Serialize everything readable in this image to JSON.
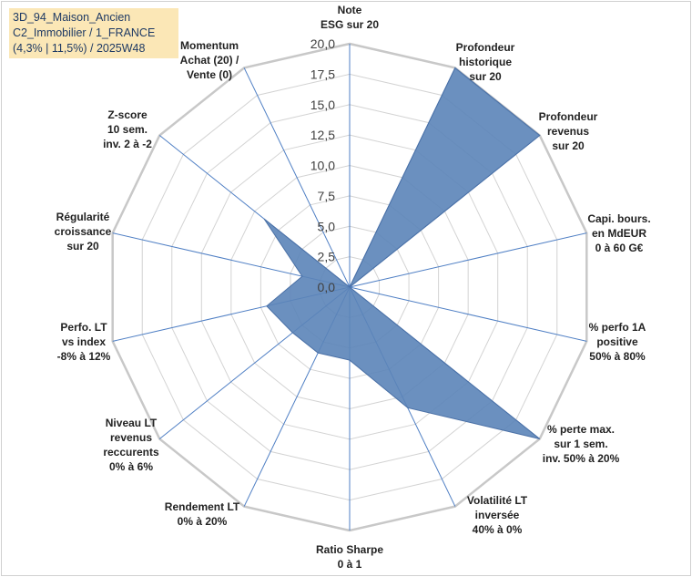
{
  "title_box": {
    "line1": "3D_94_Maison_Ancien",
    "line2": "C2_Immobilier / 1_FRANCE",
    "line3": "(4,3% | 11,5%) / 2025W48"
  },
  "chart_data": {
    "type": "radar",
    "r_min": 0,
    "r_max": 20,
    "r_step": 2.5,
    "tick_labels": [
      "0,0",
      "2,5",
      "5,0",
      "7,5",
      "10,0",
      "12,5",
      "15,0",
      "17,5",
      "20,0"
    ],
    "axes": [
      "Note\nESG sur 20",
      "Profondeur\nhistorique\nsur 20",
      "Profondeur\nrevenus\nsur 20",
      "Capi. bours.\nen MdEUR\n0 à 60 G€",
      "% perfo 1A\npositive\n50% à 80%",
      "% perte max.\nsur 1 sem.\ninv. 50% à 20%",
      "Volatilité LT\ninversée\n40% à 0%",
      "Ratio Sharpe\n0 à 1",
      "Rendement LT\n0% à 20%",
      "Niveau LT\nrevenus\nreccurents\n0% à 6%",
      "Perfo. LT\nvs index\n-8% à 12%",
      "Régularité\ncroissance\nsur 20",
      "Z-score\n10 sem.\ninv. 2 à -2",
      "Momentum\nAchat (20) /\nVente (0)"
    ],
    "values": [
      0,
      20,
      20,
      0,
      0,
      20,
      11,
      6,
      6,
      6,
      7,
      4,
      9,
      0
    ],
    "colors": {
      "fill": "#5b84b8",
      "stroke": "#4a70a6",
      "axis_line": "#4f7fc4",
      "grid": "#d3d3d3",
      "outer_ring": "#c8c8c8"
    }
  }
}
